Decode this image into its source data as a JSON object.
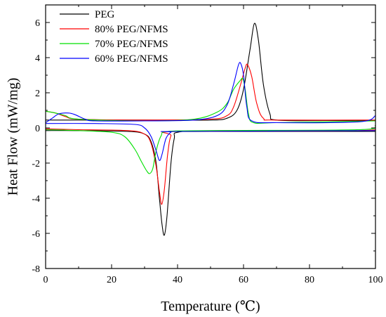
{
  "chart_data": {
    "type": "line",
    "title": "",
    "xlabel": "Temperature (℃)",
    "ylabel": "Heat Flow (mW/mg)",
    "xlim": [
      0,
      100
    ],
    "ylim": [
      -8,
      7
    ],
    "xticks": [
      0,
      20,
      40,
      60,
      80,
      100
    ],
    "yticks": [
      -8,
      -6,
      -4,
      -2,
      0,
      2,
      4,
      6
    ],
    "grid": false,
    "legend_position": "top-left",
    "series": [
      {
        "name": "PEG",
        "color": "#000000",
        "heating": [
          [
            0,
            0.45
          ],
          [
            10,
            0.45
          ],
          [
            30,
            0.45
          ],
          [
            50,
            0.45
          ],
          [
            55,
            0.55
          ],
          [
            58,
            1.0
          ],
          [
            60,
            2.2
          ],
          [
            62,
            4.5
          ],
          [
            63.3,
            5.95
          ],
          [
            64.5,
            5.0
          ],
          [
            66,
            2.5
          ],
          [
            68,
            0.8
          ],
          [
            70,
            0.45
          ],
          [
            85,
            0.42
          ],
          [
            100,
            0.42
          ]
        ],
        "cooling": [
          [
            0,
            -0.15
          ],
          [
            10,
            -0.15
          ],
          [
            25,
            -0.2
          ],
          [
            30,
            -0.35
          ],
          [
            32,
            -0.8
          ],
          [
            33.5,
            -2.0
          ],
          [
            34.5,
            -4.0
          ],
          [
            35.3,
            -5.5
          ],
          [
            36,
            -6.1
          ],
          [
            36.8,
            -5.0
          ],
          [
            38,
            -2.0
          ],
          [
            39,
            -0.6
          ],
          [
            40,
            -0.25
          ],
          [
            50,
            -0.2
          ],
          [
            100,
            -0.2
          ]
        ]
      },
      {
        "name": "80% PEG/NFMS",
        "color": "#ff0000",
        "heating": [
          [
            0,
            0.95
          ],
          [
            3,
            0.85
          ],
          [
            6,
            0.65
          ],
          [
            10,
            0.5
          ],
          [
            30,
            0.45
          ],
          [
            50,
            0.5
          ],
          [
            55,
            0.7
          ],
          [
            57,
            1.2
          ],
          [
            59,
            2.4
          ],
          [
            60.5,
            3.4
          ],
          [
            61.2,
            3.6
          ],
          [
            62.5,
            2.9
          ],
          [
            64,
            1.4
          ],
          [
            66,
            0.55
          ],
          [
            70,
            0.45
          ],
          [
            100,
            0.45
          ]
        ],
        "cooling": [
          [
            0,
            -0.05
          ],
          [
            10,
            -0.1
          ],
          [
            25,
            -0.15
          ],
          [
            30,
            -0.35
          ],
          [
            32,
            -0.9
          ],
          [
            33.5,
            -2.2
          ],
          [
            34.5,
            -3.6
          ],
          [
            35.2,
            -4.35
          ],
          [
            36,
            -3.5
          ],
          [
            37,
            -1.5
          ],
          [
            38,
            -0.45
          ],
          [
            40,
            -0.2
          ],
          [
            95,
            -0.15
          ],
          [
            100,
            0.05
          ]
        ]
      },
      {
        "name": "70% PEG/NFMS",
        "color": "#00e000",
        "heating": [
          [
            0,
            0.95
          ],
          [
            3,
            0.85
          ],
          [
            6,
            0.7
          ],
          [
            10,
            0.5
          ],
          [
            30,
            0.4
          ],
          [
            45,
            0.5
          ],
          [
            52,
            0.9
          ],
          [
            55,
            1.4
          ],
          [
            57,
            2.2
          ],
          [
            59,
            2.7
          ],
          [
            59.8,
            2.8
          ],
          [
            60.5,
            2.2
          ],
          [
            61.5,
            0.8
          ],
          [
            63,
            0.3
          ],
          [
            70,
            0.3
          ],
          [
            100,
            0.4
          ]
        ],
        "cooling": [
          [
            0,
            -0.1
          ],
          [
            10,
            -0.15
          ],
          [
            20,
            -0.25
          ],
          [
            24,
            -0.5
          ],
          [
            27,
            -1.2
          ],
          [
            29,
            -1.9
          ],
          [
            30.5,
            -2.4
          ],
          [
            31.5,
            -2.6
          ],
          [
            32.5,
            -2.3
          ],
          [
            33.5,
            -1.3
          ],
          [
            35,
            -0.45
          ],
          [
            37,
            -0.2
          ],
          [
            50,
            -0.15
          ],
          [
            95,
            -0.1
          ],
          [
            100,
            0.15
          ]
        ]
      },
      {
        "name": "60% PEG/NFMS",
        "color": "#0000ff",
        "heating": [
          [
            0,
            0.3
          ],
          [
            2,
            0.55
          ],
          [
            4,
            0.8
          ],
          [
            7,
            0.85
          ],
          [
            9,
            0.75
          ],
          [
            12,
            0.5
          ],
          [
            15,
            0.4
          ],
          [
            30,
            0.4
          ],
          [
            45,
            0.45
          ],
          [
            52,
            0.7
          ],
          [
            55,
            1.3
          ],
          [
            57,
            2.5
          ],
          [
            58.5,
            3.6
          ],
          [
            59.2,
            3.65
          ],
          [
            60,
            3.0
          ],
          [
            61,
            1.2
          ],
          [
            62.5,
            0.4
          ],
          [
            70,
            0.3
          ],
          [
            95,
            0.35
          ],
          [
            100,
            0.7
          ]
        ],
        "cooling": [
          [
            0,
            0.25
          ],
          [
            15,
            0.25
          ],
          [
            27,
            0.2
          ],
          [
            30,
            0.0
          ],
          [
            32,
            -0.5
          ],
          [
            33.5,
            -1.3
          ],
          [
            34.5,
            -1.85
          ],
          [
            35.3,
            -1.5
          ],
          [
            36.5,
            -0.6
          ],
          [
            38,
            -0.25
          ],
          [
            40,
            -0.2
          ],
          [
            100,
            -0.15
          ]
        ]
      }
    ]
  }
}
